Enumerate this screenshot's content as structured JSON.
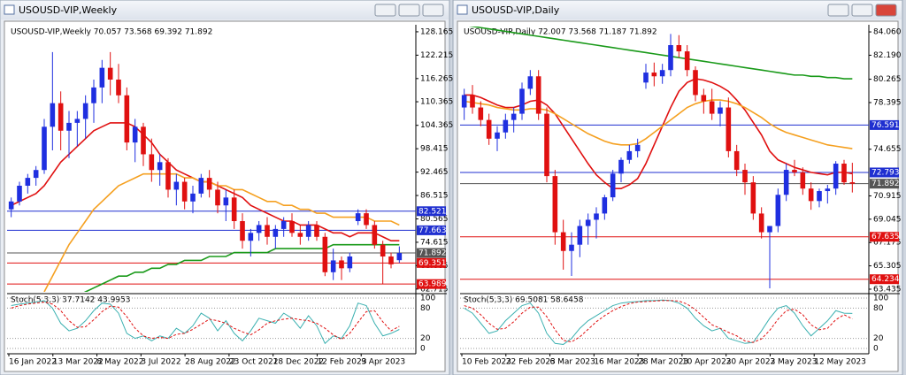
{
  "windows": [
    {
      "title": "USOUSD-VIP,Weekly",
      "info": "USOUSD-VIP,Weekly  70.057 73.568 69.392 71.892",
      "stoch_info": "Stoch(5,3,3) 37.7142 43.9953",
      "ylim": [
        62.0,
        129.5
      ],
      "price_ticks": [
        128.165,
        122.215,
        116.265,
        110.365,
        104.365,
        98.415,
        92.465,
        86.515,
        80.565,
        74.615,
        68.665,
        62.715
      ],
      "levels": [
        {
          "value": 82.521,
          "color": "#1f2fd0"
        },
        {
          "value": 77.663,
          "color": "#1f2fd0"
        },
        {
          "value": 71.892,
          "color": "#555555"
        },
        {
          "value": 69.351,
          "color": "#e01010"
        },
        {
          "value": 63.989,
          "color": "#e01010"
        }
      ],
      "bull_color": "#1f2fe0",
      "bear_color": "#e01010",
      "candles": [
        [
          83,
          86,
          81,
          85
        ],
        [
          85,
          90,
          84,
          89
        ],
        [
          89,
          92,
          87,
          91
        ],
        [
          91,
          94,
          89,
          93
        ],
        [
          93,
          106,
          92,
          104
        ],
        [
          104,
          123,
          98,
          110
        ],
        [
          110,
          113,
          98,
          103
        ],
        [
          103,
          108,
          96,
          105
        ],
        [
          105,
          108,
          99,
          106
        ],
        [
          106,
          112,
          101,
          110
        ],
        [
          110,
          116,
          105,
          114
        ],
        [
          114,
          121,
          110,
          119
        ],
        [
          119,
          123,
          112,
          116
        ],
        [
          116,
          120,
          110,
          112
        ],
        [
          112,
          114,
          98,
          100
        ],
        [
          100,
          106,
          95,
          104
        ],
        [
          104,
          105,
          94,
          97
        ],
        [
          97,
          101,
          90,
          93
        ],
        [
          93,
          97,
          89,
          95
        ],
        [
          95,
          96,
          86,
          88
        ],
        [
          88,
          92,
          84,
          90
        ],
        [
          90,
          91,
          83,
          85
        ],
        [
          85,
          89,
          82,
          87
        ],
        [
          87,
          92,
          86,
          91
        ],
        [
          91,
          93,
          86,
          88
        ],
        [
          88,
          90,
          82,
          84
        ],
        [
          84,
          88,
          80,
          86
        ],
        [
          86,
          88,
          78,
          80
        ],
        [
          80,
          82,
          73,
          75
        ],
        [
          75,
          78,
          71,
          77
        ],
        [
          77,
          80,
          75,
          79
        ],
        [
          79,
          81,
          74,
          76
        ],
        [
          76,
          79,
          73,
          78
        ],
        [
          78,
          81,
          76,
          80
        ],
        [
          80,
          82,
          76,
          77
        ],
        [
          77,
          79,
          74,
          76
        ],
        [
          76,
          80,
          75,
          79
        ],
        [
          79,
          80,
          75,
          76
        ],
        [
          76,
          77,
          66,
          67
        ],
        [
          67,
          73,
          65,
          70
        ],
        [
          70,
          71,
          65,
          68
        ],
        [
          68,
          72,
          67,
          71
        ],
        [
          80,
          83,
          79,
          82
        ],
        [
          82,
          83,
          78,
          79
        ],
        [
          79,
          80,
          73,
          74
        ],
        [
          74,
          75,
          64,
          71
        ],
        [
          71,
          72,
          68,
          69
        ],
        [
          70.057,
          73.568,
          69.392,
          71.892
        ]
      ],
      "ma": [
        {
          "color": "#e01010",
          "values": [
            84,
            85,
            86,
            87,
            89,
            92,
            95,
            97,
            99,
            101,
            103,
            104,
            105,
            105,
            105,
            104,
            102,
            100,
            97,
            95,
            93,
            92,
            91,
            90,
            90,
            89,
            88,
            87,
            86,
            84,
            83,
            82,
            81,
            80,
            80,
            79,
            79,
            79,
            78,
            77,
            77,
            76,
            77,
            77,
            77,
            76,
            75,
            75
          ]
        },
        {
          "color": "#f5a020",
          "values": [
            null,
            null,
            null,
            null,
            62,
            66,
            70,
            74,
            77,
            80,
            83,
            85,
            87,
            89,
            90,
            91,
            92,
            92,
            92,
            92,
            92,
            91,
            91,
            90,
            90,
            89,
            89,
            88,
            88,
            87,
            86,
            85,
            85,
            84,
            84,
            83,
            83,
            82,
            82,
            81,
            81,
            81,
            81,
            81,
            80,
            80,
            80,
            79
          ]
        },
        {
          "color": "#1a9a1a",
          "values": [
            null,
            null,
            null,
            null,
            null,
            null,
            null,
            60,
            61,
            62,
            63,
            64,
            65,
            66,
            66,
            67,
            67,
            68,
            68,
            69,
            69,
            70,
            70,
            70,
            71,
            71,
            71,
            72,
            72,
            72,
            72,
            72,
            73,
            73,
            73,
            73,
            73,
            73,
            73,
            74,
            74,
            74,
            74,
            74,
            74,
            74,
            74,
            74
          ]
        }
      ],
      "stoch": {
        "ylim": [
          0,
          100
        ],
        "ticks": [
          100,
          80,
          20,
          0
        ],
        "main": {
          "color": "#3ab0b0",
          "values": [
            85,
            88,
            90,
            92,
            95,
            80,
            50,
            35,
            40,
            55,
            75,
            90,
            88,
            70,
            30,
            20,
            25,
            15,
            25,
            20,
            40,
            30,
            45,
            70,
            60,
            35,
            55,
            30,
            15,
            35,
            60,
            55,
            50,
            70,
            60,
            40,
            65,
            45,
            10,
            25,
            20,
            45,
            90,
            85,
            50,
            25,
            30,
            37.7142
          ]
        },
        "signal": {
          "color": "#e01010",
          "values": [
            80,
            85,
            88,
            90,
            92,
            88,
            75,
            55,
            42,
            43,
            57,
            73,
            84,
            82,
            63,
            40,
            25,
            20,
            22,
            20,
            28,
            30,
            38,
            48,
            58,
            55,
            50,
            40,
            33,
            27,
            37,
            50,
            55,
            58,
            60,
            57,
            55,
            50,
            40,
            27,
            18,
            30,
            52,
            73,
            75,
            53,
            35,
            43.9953
          ]
        }
      },
      "dates": [
        "16 Jan 2022",
        "13 Mar 2022",
        "8 May 2022",
        "3 Jul 2022",
        "28 Aug 2022",
        "23 Oct 2022",
        "18 Dec 2022",
        "12 Feb 2023",
        "9 Apr 2023"
      ]
    },
    {
      "title": "USOUSD-VIP,Daily",
      "info": "USOUSD-VIP,Daily  72.007 73.568 71.187 71.892",
      "stoch_info": "Stoch(5,3,3) 69.5081 58.6458",
      "ylim": [
        63.22,
        84.49
      ],
      "price_ticks": [
        {
          "value": 84.06,
          "label": "84.060"
        },
        {
          "value": 82.19,
          "label": "82.190"
        },
        80.265,
        78.395,
        74.655,
        70.915,
        69.045,
        67.175,
        65.305,
        63.435
      ],
      "levels": [
        {
          "value": 76.591,
          "color": "#1f2fd0"
        },
        {
          "value": 72.793,
          "color": "#1f2fd0"
        },
        {
          "value": 71.892,
          "color": "#555555"
        },
        {
          "value": 67.635,
          "color": "#e01010"
        },
        {
          "value": 64.234,
          "color": "#e01010"
        }
      ],
      "bull_color": "#1f2fe0",
      "bear_color": "#e01010",
      "candles": [
        [
          78,
          79.5,
          77,
          79
        ],
        [
          79,
          79.8,
          77.5,
          78
        ],
        [
          78,
          78.5,
          76.5,
          77
        ],
        [
          77,
          77.5,
          75,
          75.5
        ],
        [
          75.5,
          76.5,
          74.5,
          76
        ],
        [
          76,
          77.5,
          75.5,
          77
        ],
        [
          77,
          78,
          76,
          77.5
        ],
        [
          77.5,
          80,
          77,
          79.5
        ],
        [
          79.5,
          81,
          79,
          80.5
        ],
        [
          80.5,
          81,
          77,
          77.5
        ],
        [
          77.5,
          78,
          72,
          72.5
        ],
        [
          72.5,
          73,
          67,
          68
        ],
        [
          68,
          69,
          65,
          66.5
        ],
        [
          66.5,
          68,
          64.5,
          67
        ],
        [
          67,
          69,
          66,
          68.5
        ],
        [
          68.5,
          69.5,
          67,
          69
        ],
        [
          69,
          70,
          67.5,
          69.5
        ],
        [
          69.5,
          71,
          69,
          70.8
        ],
        [
          70.8,
          73,
          70.5,
          72.7
        ],
        [
          72.7,
          74,
          72,
          73.8
        ],
        [
          73.8,
          75,
          73.5,
          74.5
        ],
        [
          74.5,
          75.5,
          74,
          75
        ],
        [
          80,
          81.5,
          79.5,
          80.8
        ],
        [
          80.8,
          81.6,
          79.7,
          80.5
        ],
        [
          80.5,
          81.5,
          79.9,
          81
        ],
        [
          81,
          83.9,
          80.5,
          83
        ],
        [
          83,
          83.8,
          82,
          82.5
        ],
        [
          82.5,
          83,
          80.5,
          81
        ],
        [
          81,
          81.3,
          78.5,
          79
        ],
        [
          79,
          79.5,
          77.5,
          78.5
        ],
        [
          78.5,
          79.5,
          77,
          77.5
        ],
        [
          77.5,
          78.5,
          76.5,
          78
        ],
        [
          78,
          78.8,
          74,
          74.5
        ],
        [
          74.5,
          75,
          72.5,
          73
        ],
        [
          73,
          73.5,
          71,
          72
        ],
        [
          72,
          72.5,
          69,
          69.5
        ],
        [
          69.5,
          70,
          67.5,
          68
        ],
        [
          68,
          68.5,
          63.5,
          68.5
        ],
        [
          68.5,
          71.5,
          68,
          71
        ],
        [
          71,
          73.5,
          70.5,
          73
        ],
        [
          73,
          73.8,
          72.5,
          72.8
        ],
        [
          72.8,
          73.2,
          71,
          71.5
        ],
        [
          71.5,
          72,
          69.8,
          70.5
        ],
        [
          70.5,
          71.5,
          70,
          71.3
        ],
        [
          71.3,
          71.8,
          70.3,
          71.5
        ],
        [
          71.5,
          73.7,
          71,
          73.5
        ],
        [
          73.5,
          73.8,
          71.8,
          72
        ],
        [
          72.007,
          73.568,
          71.187,
          71.892
        ]
      ],
      "ma": [
        {
          "color": "#e01010",
          "values": [
            79,
            79,
            78.8,
            78.5,
            78.2,
            78,
            78,
            78.2,
            78.5,
            78.6,
            78.2,
            77.5,
            76.5,
            75.5,
            74.5,
            73.5,
            72.6,
            72,
            71.5,
            71.5,
            71.8,
            72.3,
            73.5,
            75,
            76.5,
            78,
            79.3,
            80,
            80.3,
            80.2,
            80,
            79.7,
            79.3,
            78.6,
            77.8,
            76.8,
            75.8,
            74.5,
            73.8,
            73.5,
            73.2,
            73,
            72.8,
            72.7,
            72.6,
            72.8,
            72.8,
            72.7
          ]
        },
        {
          "color": "#f5a020",
          "values": [
            78.5,
            78.4,
            78.3,
            78.2,
            78,
            77.9,
            77.8,
            77.8,
            77.9,
            77.9,
            77.8,
            77.5,
            77.1,
            76.7,
            76.3,
            75.9,
            75.6,
            75.3,
            75.1,
            75,
            75,
            75.1,
            75.5,
            76,
            76.5,
            77,
            77.5,
            78,
            78.3,
            78.5,
            78.6,
            78.6,
            78.5,
            78.3,
            78,
            77.6,
            77.2,
            76.7,
            76.3,
            76,
            75.8,
            75.6,
            75.4,
            75.2,
            75,
            74.9,
            74.8,
            74.7
          ]
        },
        {
          "color": "#1a9a1a",
          "values": [
            84.6,
            84.5,
            84.4,
            84.3,
            84.2,
            84.1,
            84,
            83.9,
            83.8,
            83.7,
            83.6,
            83.5,
            83.4,
            83.3,
            83.2,
            83.1,
            83,
            82.9,
            82.8,
            82.7,
            82.6,
            82.5,
            82.4,
            82.3,
            82.2,
            82.1,
            82,
            81.9,
            81.8,
            81.7,
            81.6,
            81.5,
            81.4,
            81.3,
            81.2,
            81.1,
            81,
            80.9,
            80.8,
            80.7,
            80.6,
            80.6,
            80.5,
            80.5,
            80.4,
            80.4,
            80.3,
            80.3
          ]
        }
      ],
      "stoch": {
        "ylim": [
          0,
          100
        ],
        "ticks": [
          100,
          80,
          20,
          0
        ],
        "main": {
          "color": "#3ab0b0",
          "values": [
            80,
            70,
            50,
            30,
            35,
            55,
            70,
            85,
            90,
            70,
            30,
            10,
            8,
            20,
            40,
            55,
            65,
            75,
            85,
            90,
            92,
            93,
            95,
            95,
            96,
            95,
            90,
            80,
            60,
            45,
            35,
            40,
            20,
            15,
            10,
            12,
            35,
            60,
            80,
            85,
            70,
            45,
            25,
            40,
            55,
            75,
            70,
            69.5081
          ]
        },
        "signal": {
          "color": "#e01010",
          "values": [
            85,
            80,
            67,
            50,
            38,
            40,
            53,
            70,
            82,
            82,
            63,
            37,
            16,
            13,
            23,
            38,
            53,
            65,
            75,
            83,
            89,
            92,
            93,
            94,
            95,
            95,
            94,
            88,
            77,
            62,
            47,
            40,
            32,
            25,
            15,
            12,
            19,
            36,
            58,
            75,
            78,
            67,
            47,
            37,
            40,
            57,
            67,
            58.6458
          ]
        }
      },
      "dates": [
        "10 Feb 2023",
        "22 Feb 2023",
        "6 Mar 2023",
        "16 Mar 2023",
        "28 Mar 2023",
        "10 Apr 2023",
        "20 Apr 2023",
        "2 May 2023",
        "12 May 2023"
      ]
    }
  ]
}
